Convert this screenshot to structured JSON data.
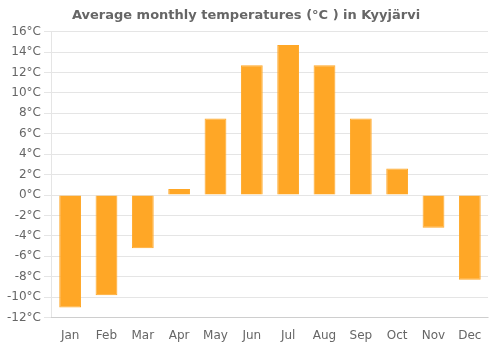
{
  "chart_data": {
    "type": "bar",
    "title": "Average monthly temperatures (°C ) in Kyyjärvi",
    "categories": [
      "Jan",
      "Feb",
      "Mar",
      "Apr",
      "May",
      "Jun",
      "Jul",
      "Aug",
      "Sep",
      "Oct",
      "Nov",
      "Dec"
    ],
    "values": [
      -11,
      -9.8,
      -5.2,
      0.6,
      7.5,
      12.7,
      14.7,
      12.7,
      7.5,
      2.6,
      -3.2,
      -8.3
    ],
    "color": "#FFA726",
    "ylim": [
      -12,
      16
    ],
    "yticks": [
      {
        "value": -12,
        "label": "-12°C"
      },
      {
        "value": -10,
        "label": "-10°C"
      },
      {
        "value": -8,
        "label": "-8°C"
      },
      {
        "value": -6,
        "label": "-6°C"
      },
      {
        "value": -4,
        "label": "-4°C"
      },
      {
        "value": -2,
        "label": "-2°C"
      },
      {
        "value": 0,
        "label": "0°C"
      },
      {
        "value": 2,
        "label": "2°C"
      },
      {
        "value": 4,
        "label": "4°C"
      },
      {
        "value": 6,
        "label": "6°C"
      },
      {
        "value": 8,
        "label": "8°C"
      },
      {
        "value": 10,
        "label": "10°C"
      },
      {
        "value": 12,
        "label": "12°C"
      },
      {
        "value": 14,
        "label": "14°C"
      },
      {
        "value": 16,
        "label": "16°C"
      }
    ],
    "grid": true
  }
}
